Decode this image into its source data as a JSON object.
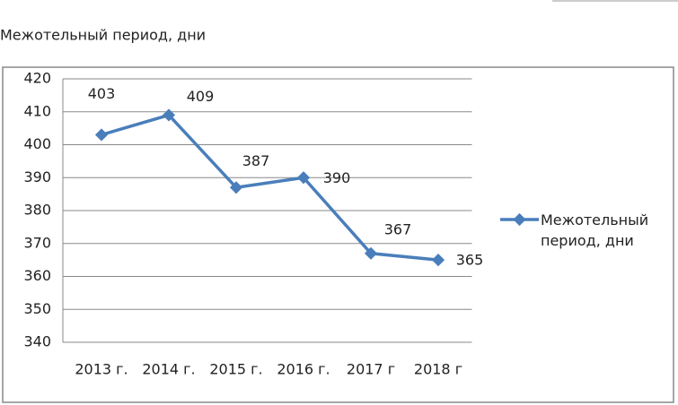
{
  "chart_data": {
    "type": "line",
    "title": "Межотельный период, дни",
    "categories": [
      "2013 г.",
      "2014 г.",
      "2015 г.",
      "2016 г.",
      "2017 г",
      "2018 г"
    ],
    "series": [
      {
        "name": "Межотельный период, дни",
        "color": "#4a7ebb",
        "values": [
          403,
          409,
          387,
          390,
          367,
          365
        ]
      }
    ],
    "ylim": [
      340,
      420
    ],
    "yticks": [
      340,
      350,
      360,
      370,
      380,
      390,
      400,
      410,
      420
    ],
    "grid": true,
    "legend": "right",
    "data_labels": true
  }
}
